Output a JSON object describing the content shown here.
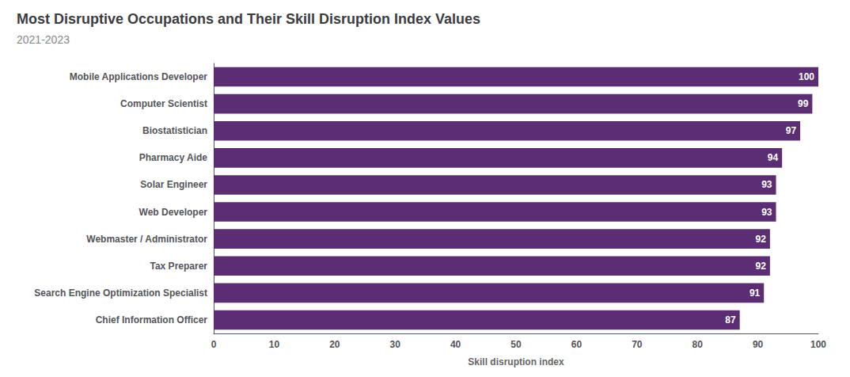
{
  "chart_data": {
    "type": "bar",
    "orientation": "horizontal",
    "title": "Most Disruptive Occupations and Their Skill Disruption Index Values",
    "subtitle": "2021-2023",
    "xlabel": "Skill disruption index",
    "categories": [
      "Chief Information Officer",
      "Search Engine Optimization Specialist",
      "Tax Preparer",
      "Webmaster / Administrator",
      "Web Developer",
      "Solar Engineer",
      "Pharmacy Aide",
      "Biostatistician",
      "Computer Scientist",
      "Mobile Applications Developer"
    ],
    "values": [
      87,
      91,
      92,
      92,
      93,
      93,
      94,
      97,
      99,
      100
    ],
    "color": "#5B2D72",
    "xlim": [
      0,
      100
    ],
    "xticks": [
      0,
      10,
      20,
      30,
      40,
      50,
      60,
      70,
      80,
      90,
      100
    ],
    "grid": false,
    "data_labels": true
  }
}
